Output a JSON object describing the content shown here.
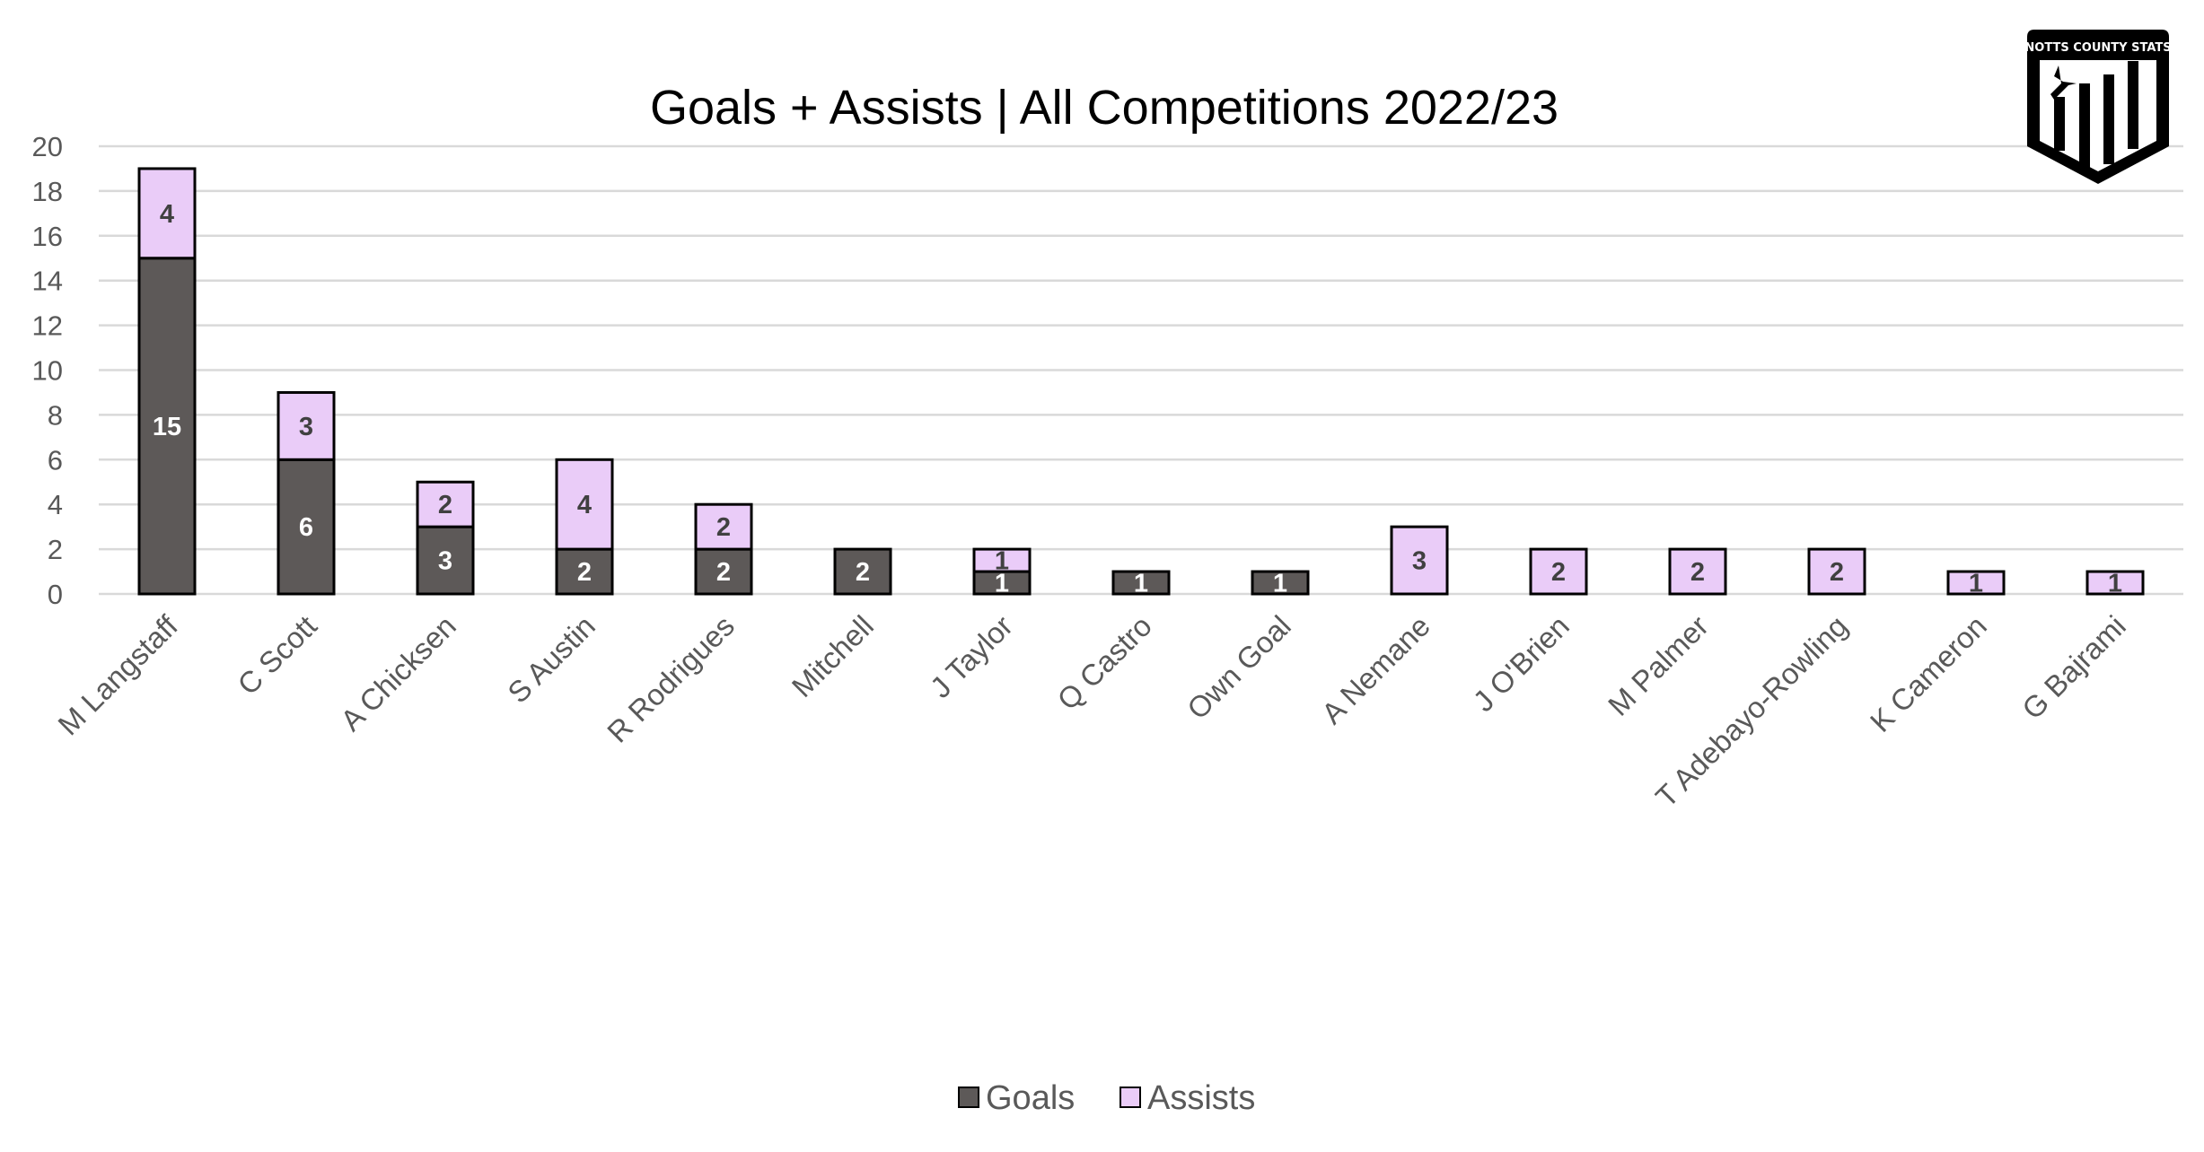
{
  "chart_data": {
    "type": "bar",
    "stacked": true,
    "title": "Goals + Assists | All Competitions 2022/23",
    "xlabel": "",
    "ylabel": "",
    "ylim": [
      0,
      20
    ],
    "yticks": [
      0,
      2,
      4,
      6,
      8,
      10,
      12,
      14,
      16,
      18,
      20
    ],
    "grid": true,
    "legend_position": "bottom",
    "categories": [
      "M Langstaff",
      "C Scott",
      "A Chicksen",
      "S Austin",
      "R Rodrigues",
      "Mitchell",
      "J Taylor",
      "Q Castro",
      "Own Goal",
      "A Nemane",
      "J O'Brien",
      "M Palmer",
      "T Adebayo-Rowling",
      "K Cameron",
      "G Bajrami"
    ],
    "series": [
      {
        "name": "Goals",
        "color": "#5d5958",
        "label_color": "#ffffff",
        "values": [
          15,
          6,
          3,
          2,
          2,
          2,
          1,
          1,
          1,
          0,
          0,
          0,
          0,
          0,
          0
        ]
      },
      {
        "name": "Assists",
        "color": "#eaccf8",
        "label_color": "#404040",
        "values": [
          4,
          3,
          2,
          4,
          2,
          0,
          1,
          0,
          0,
          3,
          2,
          2,
          2,
          1,
          1
        ]
      }
    ]
  },
  "logo": {
    "text": "NOTTS COUNTY STATS"
  }
}
